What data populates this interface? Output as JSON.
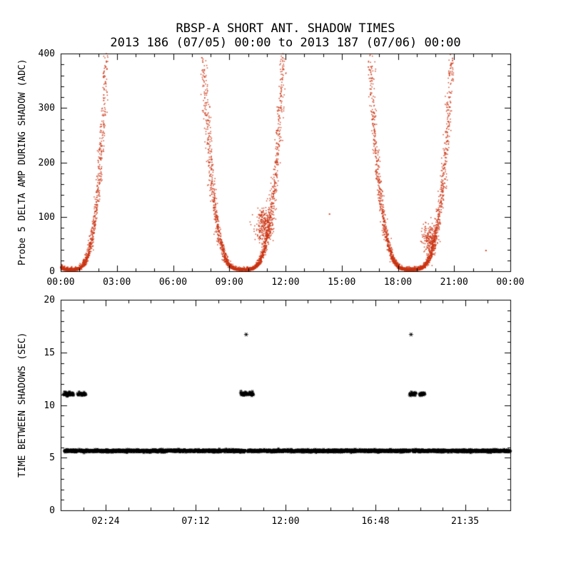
{
  "colors": {
    "background": "#ffffff",
    "axis": "#000000",
    "scatter_top": "#cc3311",
    "scatter_bottom": "#000000"
  },
  "chart_data": [
    {
      "type": "scatter",
      "panel": "top",
      "title": "RBSP-A SHORT ANT. SHADOW TIMES",
      "subtitle": "2013 186 (07/05) 00:00 to 2013 187 (07/06) 00:00",
      "xlabel": "",
      "ylabel": "Probe 5 DELTA AMP DURING SHADOW (ADC)",
      "xlim_hours": [
        0,
        24
      ],
      "ylim": [
        0,
        400
      ],
      "x_minor_step": 1,
      "y_minor_step": 20,
      "marker": "dot",
      "x_ticks": [
        {
          "hour": 0,
          "label": "00:00"
        },
        {
          "hour": 3,
          "label": "03:00"
        },
        {
          "hour": 6,
          "label": "06:00"
        },
        {
          "hour": 9,
          "label": "09:00"
        },
        {
          "hour": 12,
          "label": "12:00"
        },
        {
          "hour": 15,
          "label": "15:00"
        },
        {
          "hour": 18,
          "label": "18:00"
        },
        {
          "hour": 21,
          "label": "21:00"
        },
        {
          "hour": 24,
          "label": "00:00"
        }
      ],
      "y_ticks": [
        {
          "value": 0,
          "label": "0"
        },
        {
          "value": 100,
          "label": "100"
        },
        {
          "value": 200,
          "label": "200"
        },
        {
          "value": 300,
          "label": "300"
        },
        {
          "value": 400,
          "label": "400"
        }
      ],
      "series_description": "Red dotted scatter: three eclipse shadow events, amplitude rises steeply from ~0 ADC at each shadow-center valley up past 400 ADC on both flanks",
      "events": [
        {
          "center_hour": 0.55,
          "reach_max_hour": 1.9,
          "exponent": 3.6
        },
        {
          "center_hour": 9.75,
          "reach_max_hour": 2.15,
          "exponent": 3.6,
          "bump": {
            "hour": 10.85,
            "value": 85,
            "x_spread": 0.22,
            "y_spread": 16,
            "count": 260
          }
        },
        {
          "center_hour": 18.7,
          "reach_max_hour": 2.2,
          "exponent": 3.6,
          "bump": {
            "hour": 19.7,
            "value": 58,
            "x_spread": 0.2,
            "y_spread": 14,
            "count": 200
          }
        }
      ],
      "stray_points": [
        {
          "hour": 14.35,
          "value": 105
        },
        {
          "hour": 22.7,
          "value": 38
        }
      ]
    },
    {
      "type": "scatter",
      "panel": "bottom",
      "title": "",
      "xlabel": "",
      "ylabel": "TIME BETWEEN SHADOWS (SEC)",
      "xlim_hours": [
        0,
        24
      ],
      "ylim": [
        0,
        20
      ],
      "x_minor_step": 1.2,
      "y_minor_step": 1,
      "marker": "asterisk",
      "x_ticks": [
        {
          "hour": 2.4,
          "label": "02:24"
        },
        {
          "hour": 7.2,
          "label": "07:12"
        },
        {
          "hour": 12,
          "label": "12:00"
        },
        {
          "hour": 16.8,
          "label": "16:48"
        },
        {
          "hour": 21.583,
          "label": "21:35"
        }
      ],
      "y_ticks": [
        {
          "value": 0,
          "label": "0"
        },
        {
          "value": 5,
          "label": "5"
        },
        {
          "value": 10,
          "label": "10"
        },
        {
          "value": 15,
          "label": "15"
        },
        {
          "value": 20,
          "label": "20"
        }
      ],
      "series_description": "Black asterisks: continuous band of shadow spacing ~5.65 s across the day, short clusters at ~11 s near each eclipse event, two isolated points at ~16.7 s",
      "bands": [
        {
          "value": 5.65,
          "x_start": 0.2,
          "x_end": 24.0,
          "step_hours": 0.006,
          "y_jitter": 0.055,
          "gaps": [
            [
              0.88,
              0.98
            ],
            [
              9.86,
              9.98
            ],
            [
              18.66,
              18.78
            ]
          ]
        }
      ],
      "clusters": [
        {
          "value": 11.05,
          "y_jitter": 0.09,
          "step_hours": 0.012,
          "ranges": [
            [
              0.15,
              0.7
            ],
            [
              0.9,
              1.35
            ],
            [
              9.6,
              10.0
            ],
            [
              10.05,
              10.3
            ],
            [
              18.62,
              18.98
            ],
            [
              19.15,
              19.45
            ]
          ]
        }
      ],
      "isolated_points": [
        {
          "hour": 9.9,
          "value": 16.7
        },
        {
          "hour": 18.7,
          "value": 16.7
        }
      ]
    }
  ]
}
